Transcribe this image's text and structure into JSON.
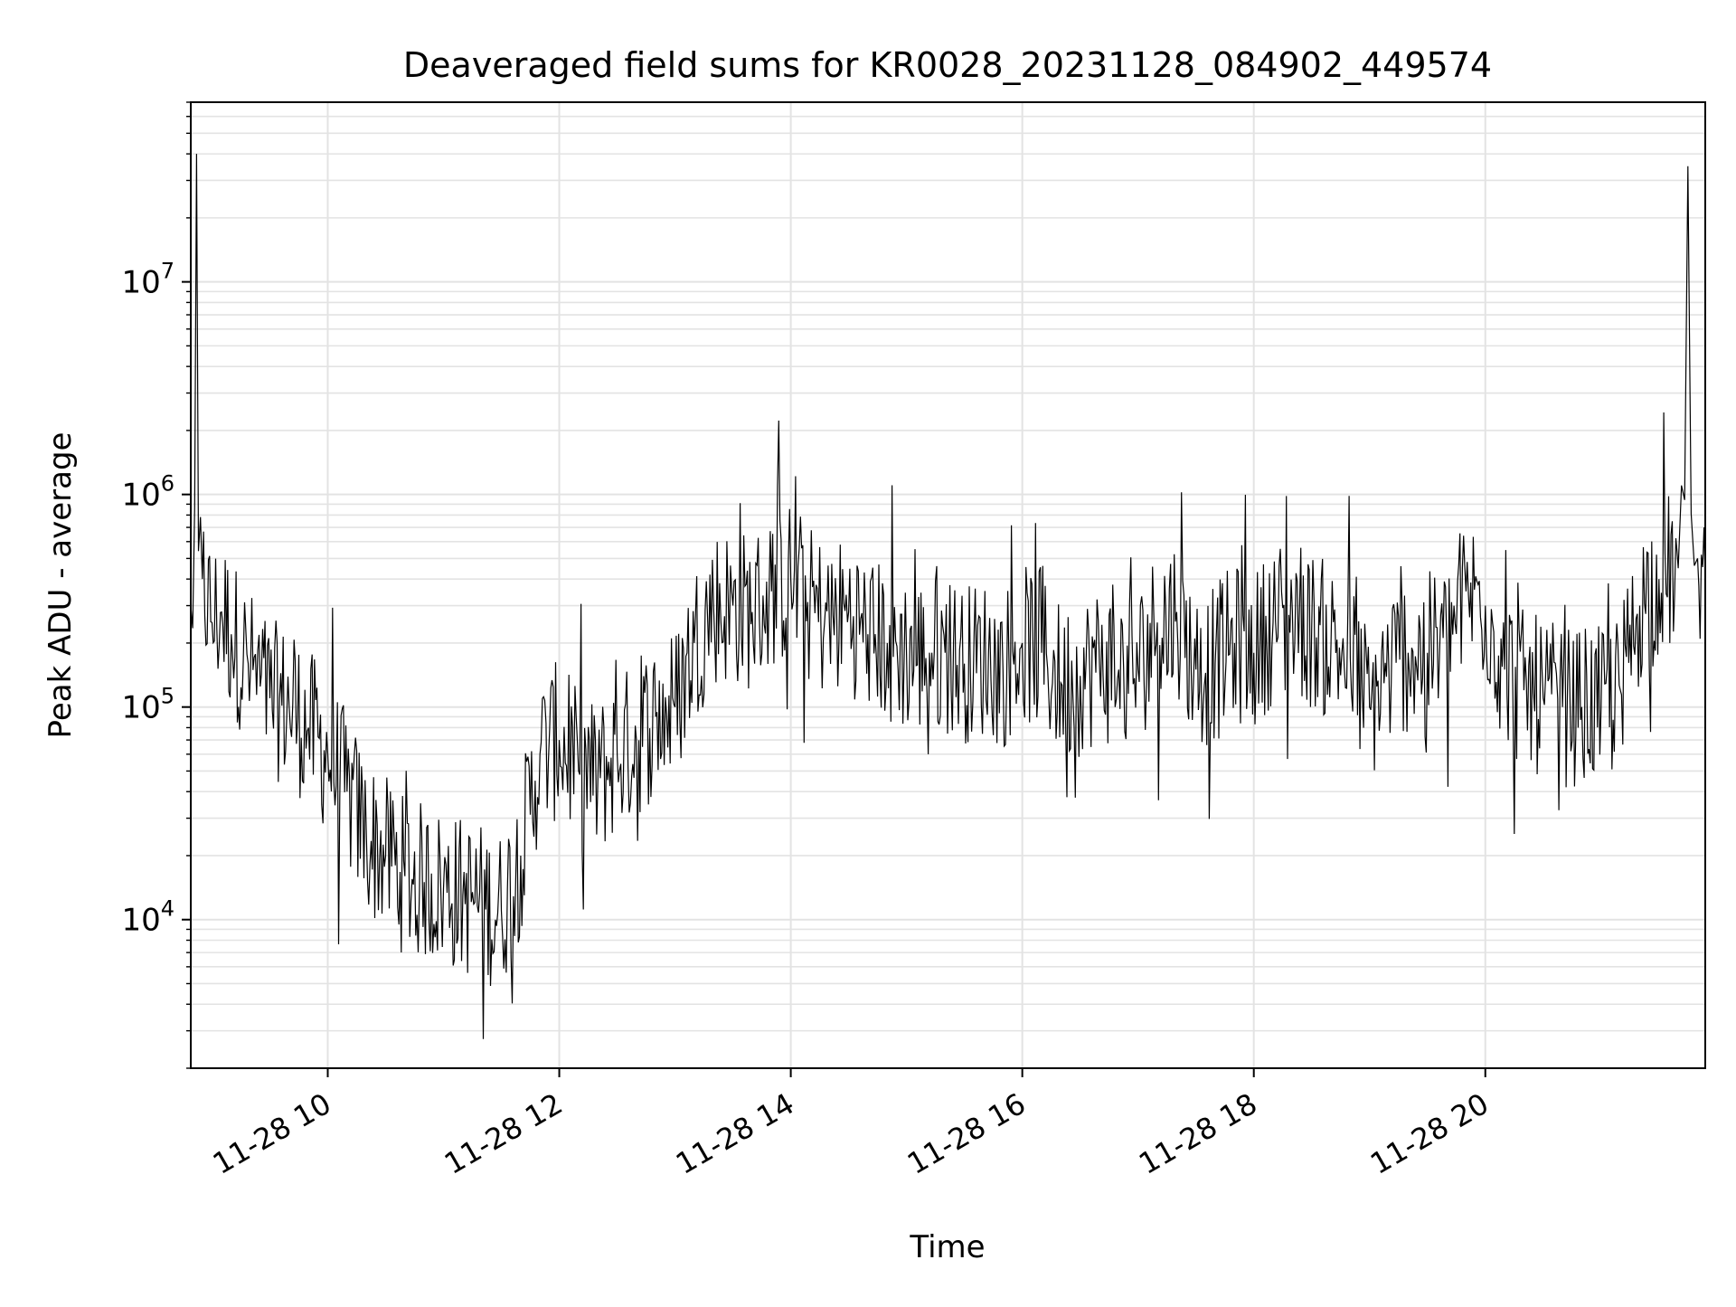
{
  "chart_data": {
    "type": "line",
    "title": "Deaveraged field sums for KR0028_20231128_084902_449574",
    "xlabel": "Time",
    "ylabel": "Peak ADU - average",
    "yscale": "log",
    "ylim": [
      2000,
      70000000
    ],
    "xlim": [
      "2023-11-28 08:49",
      "2023-11-28 21:54"
    ],
    "grid": true,
    "line_color": "#000000",
    "grid_color": "#e3e3e3",
    "x_ticks": [
      {
        "time": "2023-11-28 10:00",
        "label": "11-28 10"
      },
      {
        "time": "2023-11-28 12:00",
        "label": "11-28 12"
      },
      {
        "time": "2023-11-28 14:00",
        "label": "11-28 14"
      },
      {
        "time": "2023-11-28 16:00",
        "label": "11-28 16"
      },
      {
        "time": "2023-11-28 18:00",
        "label": "11-28 18"
      },
      {
        "time": "2023-11-28 20:00",
        "label": "11-28 20"
      }
    ],
    "y_ticks": [
      {
        "value": 10000,
        "base": "10",
        "exp": "4"
      },
      {
        "value": 100000,
        "base": "10",
        "exp": "5"
      },
      {
        "value": 1000000,
        "base": "10",
        "exp": "6"
      },
      {
        "value": 10000000,
        "base": "10",
        "exp": "7"
      }
    ],
    "series": [
      {
        "x": [
          "2023-11-28 08:49",
          "2023-11-28 08:52",
          "2023-11-28 08:55",
          "2023-11-28 09:00",
          "2023-11-28 09:05",
          "2023-11-28 09:10",
          "2023-11-28 09:20",
          "2023-11-28 09:30",
          "2023-11-28 09:40",
          "2023-11-28 09:50",
          "2023-11-28 10:00",
          "2023-11-28 10:10",
          "2023-11-28 10:20",
          "2023-11-28 10:30",
          "2023-11-28 10:40",
          "2023-11-28 10:50",
          "2023-11-28 11:00",
          "2023-11-28 11:10",
          "2023-11-28 11:20",
          "2023-11-28 11:30",
          "2023-11-28 11:40",
          "2023-11-28 11:50",
          "2023-11-28 12:00",
          "2023-11-28 12:10",
          "2023-11-28 12:20",
          "2023-11-28 12:30",
          "2023-11-28 12:40",
          "2023-11-28 12:50",
          "2023-11-28 13:00",
          "2023-11-28 13:10",
          "2023-11-28 13:20",
          "2023-11-28 13:30",
          "2023-11-28 13:40",
          "2023-11-28 13:50",
          "2023-11-28 14:00",
          "2023-11-28 14:10",
          "2023-11-28 14:20",
          "2023-11-28 14:30",
          "2023-11-28 14:40",
          "2023-11-28 14:50",
          "2023-11-28 15:00",
          "2023-11-28 15:10",
          "2023-11-28 15:20",
          "2023-11-28 15:30",
          "2023-11-28 15:40",
          "2023-11-28 15:50",
          "2023-11-28 16:00",
          "2023-11-28 16:10",
          "2023-11-28 16:20",
          "2023-11-28 16:30",
          "2023-11-28 16:40",
          "2023-11-28 16:50",
          "2023-11-28 17:00",
          "2023-11-28 17:10",
          "2023-11-28 17:20",
          "2023-11-28 17:30",
          "2023-11-28 17:40",
          "2023-11-28 17:50",
          "2023-11-28 18:00",
          "2023-11-28 18:10",
          "2023-11-28 18:20",
          "2023-11-28 18:30",
          "2023-11-28 18:40",
          "2023-11-28 18:50",
          "2023-11-28 19:00",
          "2023-11-28 19:10",
          "2023-11-28 19:20",
          "2023-11-28 19:30",
          "2023-11-28 19:40",
          "2023-11-28 19:50",
          "2023-11-28 20:00",
          "2023-11-28 20:10",
          "2023-11-28 20:20",
          "2023-11-28 20:30",
          "2023-11-28 20:40",
          "2023-11-28 20:50",
          "2023-11-28 21:00",
          "2023-11-28 21:10",
          "2023-11-28 21:20",
          "2023-11-28 21:30",
          "2023-11-28 21:40",
          "2023-11-28 21:45",
          "2023-11-28 21:50",
          "2023-11-28 21:54"
        ],
        "y": [
          300000,
          40000000,
          400000,
          250000,
          280000,
          220000,
          150000,
          110000,
          100000,
          80000,
          60000,
          40000,
          25000,
          20000,
          16000,
          15000,
          14000,
          13000,
          12000,
          11000,
          20000,
          60000,
          70000,
          50000,
          45000,
          60000,
          70000,
          90000,
          100000,
          200000,
          300000,
          300000,
          280000,
          350000,
          400000,
          300000,
          250000,
          280000,
          220000,
          200000,
          180000,
          170000,
          180000,
          160000,
          170000,
          150000,
          200000,
          180000,
          130000,
          140000,
          160000,
          150000,
          150000,
          250000,
          280000,
          150000,
          160000,
          200000,
          180000,
          250000,
          280000,
          230000,
          200000,
          170000,
          100000,
          150000,
          180000,
          180000,
          200000,
          350000,
          300000,
          150000,
          120000,
          110000,
          100000,
          100000,
          100000,
          120000,
          300000,
          400000,
          450000,
          35000000,
          500000,
          400000
        ]
      }
    ]
  }
}
